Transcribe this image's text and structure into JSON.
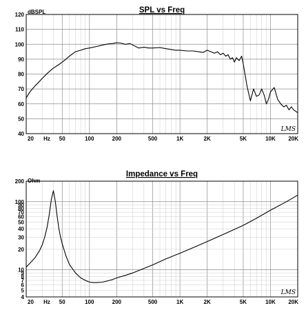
{
  "chart_data": [
    {
      "type": "line",
      "title": "SPL vs Freq",
      "ylabel": "dBSPL",
      "xlabel": "",
      "x_scale": "log",
      "xlim": [
        20,
        20000
      ],
      "ylim": [
        40,
        120
      ],
      "grid": true,
      "x_tick_labels": [
        "20",
        "Hz",
        "50",
        "100",
        "200",
        "500",
        "1K",
        "2K",
        "5K",
        "10K",
        "20K"
      ],
      "x_tick_values": [
        20,
        null,
        50,
        100,
        200,
        500,
        1000,
        2000,
        5000,
        10000,
        20000
      ],
      "y_ticks": [
        40,
        50,
        60,
        70,
        80,
        90,
        100,
        110,
        120
      ],
      "logo": "LMS",
      "series": [
        {
          "x": [
            20,
            22,
            25,
            28,
            30,
            35,
            40,
            45,
            50,
            55,
            60,
            70,
            80,
            90,
            100,
            120,
            140,
            160,
            180,
            200,
            220,
            250,
            280,
            300,
            350,
            400,
            450,
            500,
            600,
            700,
            800,
            900,
            1000,
            1200,
            1400,
            1600,
            1800,
            2000,
            2200,
            2400,
            2600,
            2800,
            3000,
            3200,
            3400,
            3600,
            3800,
            4000,
            4200,
            4500,
            4800,
            5000,
            5500,
            6000,
            6500,
            7000,
            7500,
            8000,
            8500,
            9000,
            9500,
            10000,
            11000,
            12000,
            13000,
            14000,
            15000,
            16000,
            17000,
            18000,
            19000,
            20000
          ],
          "y": [
            64,
            68,
            72,
            75,
            77,
            81,
            84,
            86,
            88,
            90,
            92,
            95,
            96,
            97,
            97.5,
            98.5,
            99.5,
            100.2,
            100.5,
            101,
            100.8,
            100,
            100.5,
            99.5,
            97.5,
            98,
            97.5,
            97.5,
            97.8,
            97,
            96.5,
            96,
            96,
            95.5,
            95.5,
            95,
            94.5,
            96,
            95,
            94,
            95,
            93,
            94,
            92,
            93,
            90,
            91,
            88,
            91,
            89,
            92,
            87,
            72,
            62,
            70,
            65,
            66,
            70,
            66,
            60,
            63,
            68,
            71,
            63,
            60,
            58,
            59,
            56,
            58,
            56,
            55,
            54
          ]
        }
      ]
    },
    {
      "type": "line",
      "title": "Impedance vs Freq",
      "ylabel": "Ohm",
      "xlabel": "",
      "x_scale": "log",
      "y_scale": "log",
      "xlim": [
        20,
        20000
      ],
      "ylim": [
        4,
        200
      ],
      "grid": true,
      "x_tick_labels": [
        "20",
        "Hz",
        "50",
        "100",
        "200",
        "500",
        "1K",
        "2K",
        "5K",
        "10K",
        "20K"
      ],
      "x_tick_values": [
        20,
        null,
        50,
        100,
        200,
        500,
        1000,
        2000,
        5000,
        10000,
        20000
      ],
      "y_tick_labels": [
        "4",
        "5",
        "6",
        "7",
        "8",
        "9",
        "10",
        "20",
        "30",
        "40",
        "50",
        "60",
        "70",
        "80",
        "90",
        "100",
        "200"
      ],
      "y_tick_values": [
        4,
        5,
        6,
        7,
        8,
        9,
        10,
        20,
        30,
        40,
        50,
        60,
        70,
        80,
        90,
        100,
        200
      ],
      "logo": "LMS",
      "series": [
        {
          "x": [
            20,
            22,
            25,
            28,
            30,
            32,
            34,
            36,
            38,
            40,
            42,
            44,
            46,
            48,
            50,
            55,
            60,
            70,
            80,
            90,
            100,
            110,
            120,
            140,
            160,
            180,
            200,
            250,
            300,
            400,
            500,
            700,
            1000,
            1500,
            2000,
            3000,
            5000,
            7000,
            10000,
            15000,
            20000
          ],
          "y": [
            11,
            12.5,
            15,
            19,
            23,
            30,
            42,
            65,
            110,
            145,
            100,
            60,
            40,
            30,
            24,
            16,
            12,
            9,
            7.6,
            7,
            6.6,
            6.5,
            6.5,
            6.6,
            6.9,
            7.2,
            7.6,
            8.3,
            9,
            10.5,
            11.8,
            14.5,
            17.5,
            22,
            26,
            33,
            45,
            57,
            75,
            100,
            125
          ]
        }
      ]
    }
  ]
}
